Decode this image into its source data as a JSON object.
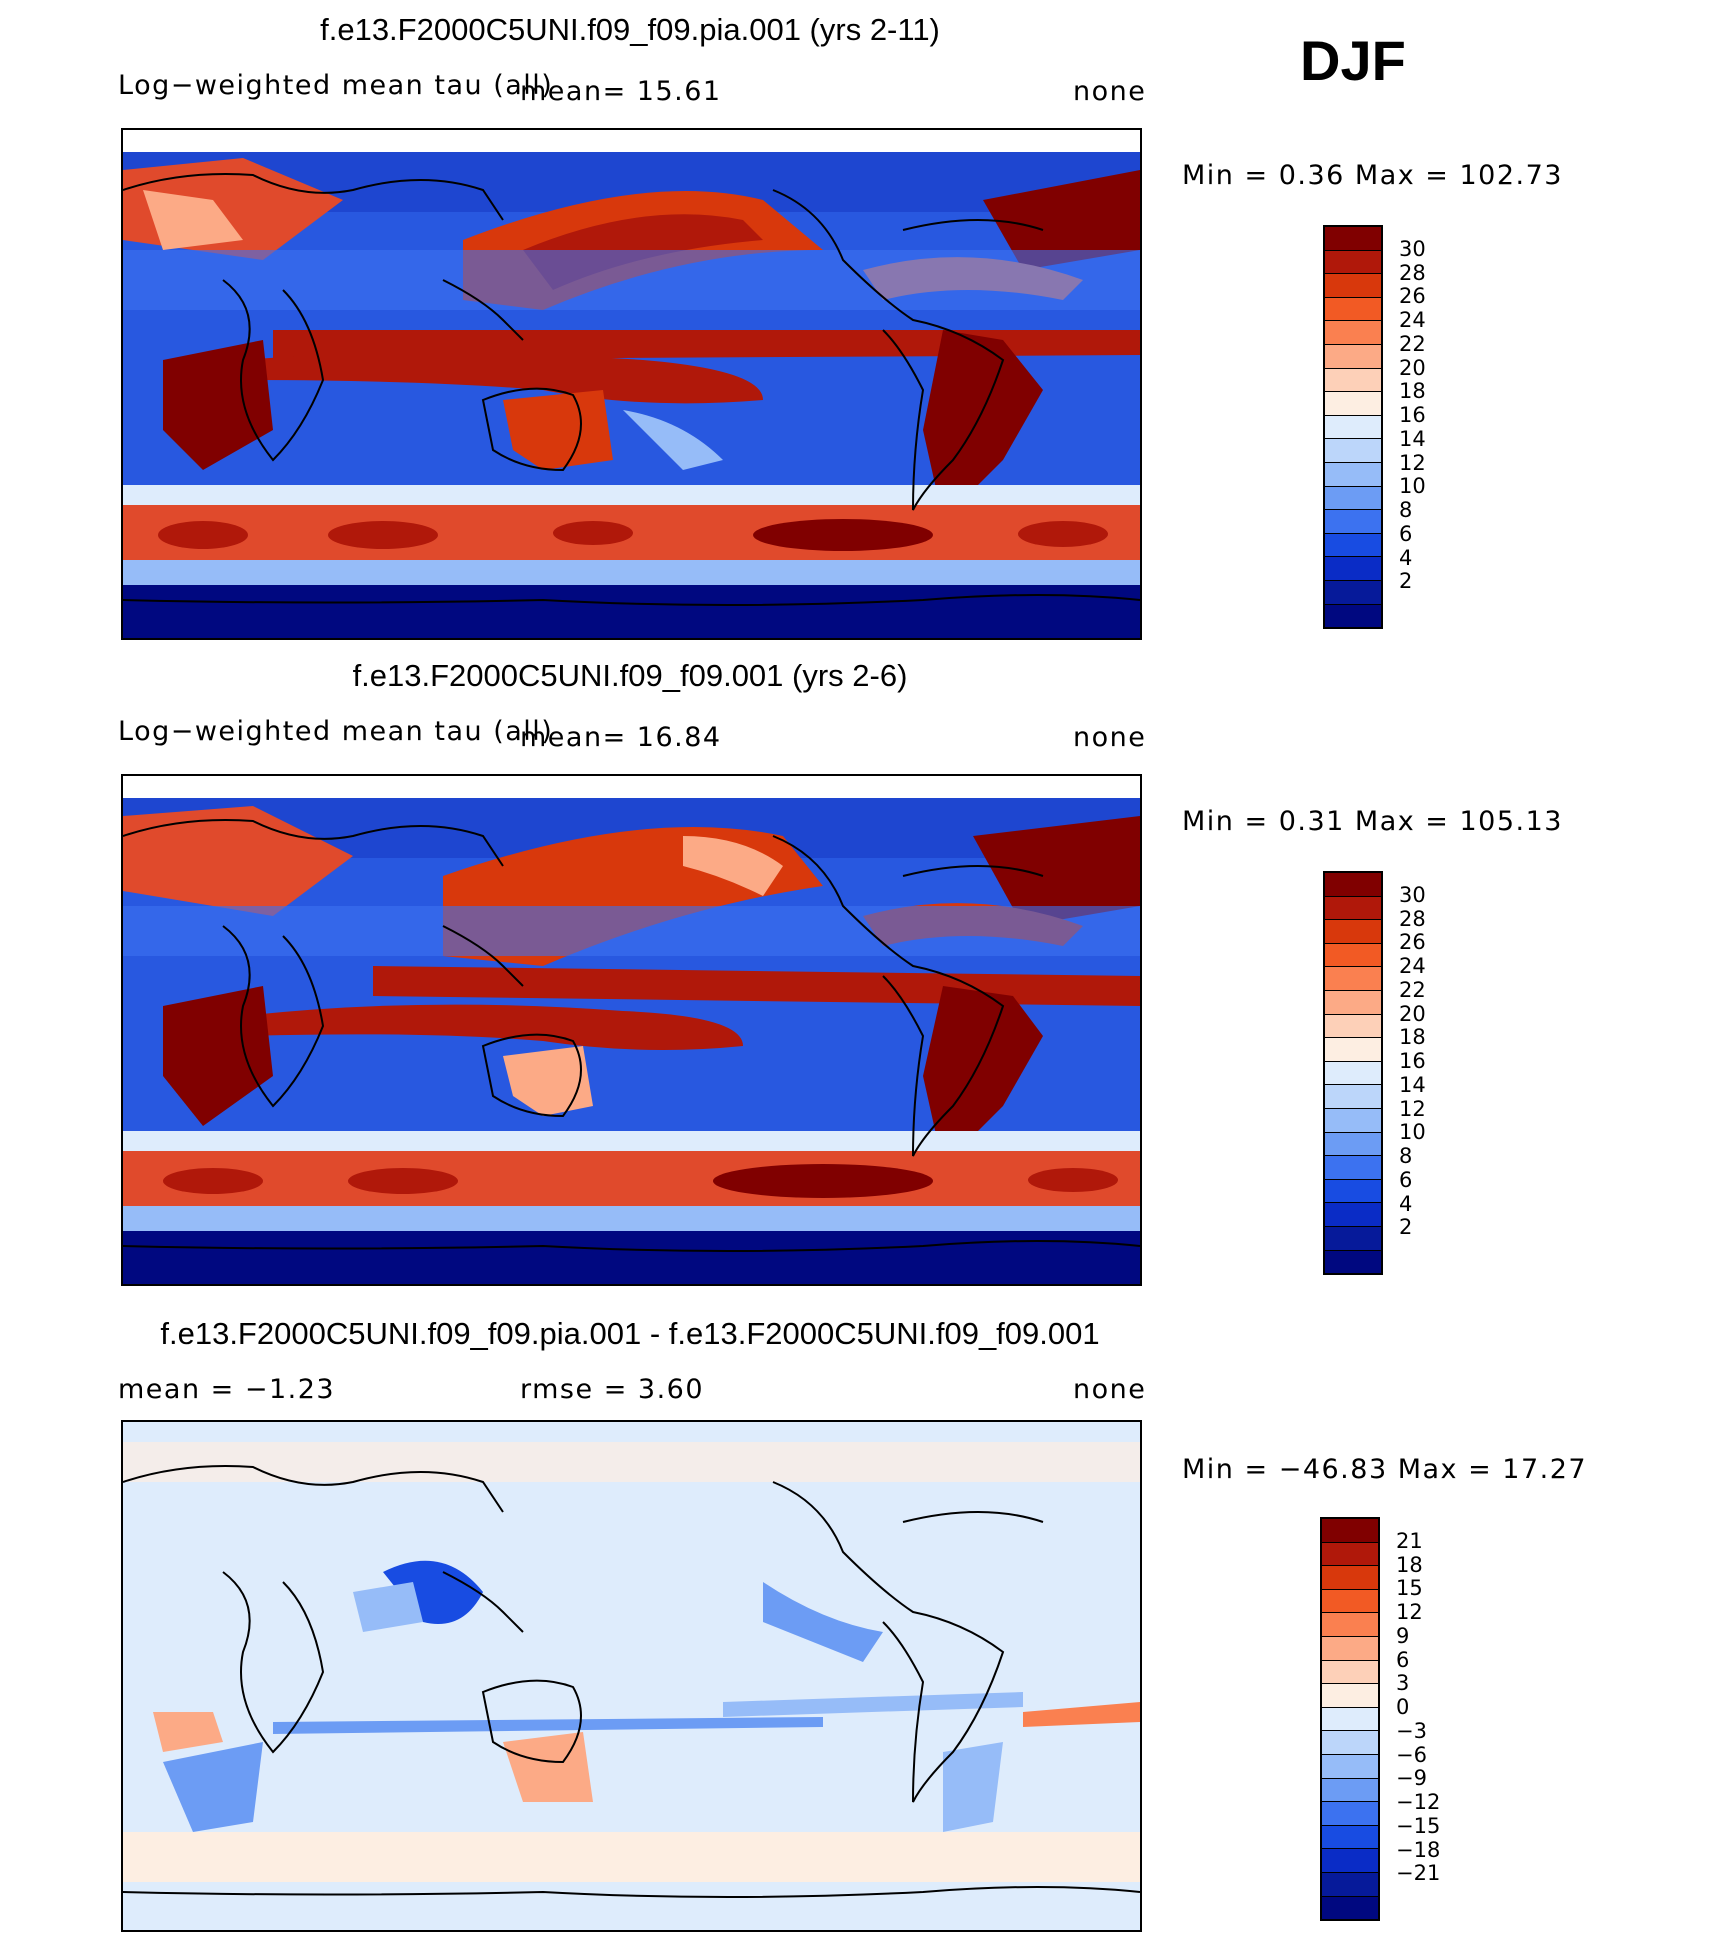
{
  "season": "DJF",
  "panels": [
    {
      "title": "f.e13.F2000C5UNI.f09_f09.pia.001 (yrs 2-11)",
      "left_label": "Log−weighted mean tau (all)",
      "mid_label": "mean=   15.61",
      "right_label": "none",
      "stats": "Min =     0.36  Max  =  102.73",
      "colorbar": {
        "colors": [
          "#800000",
          "#b0180a",
          "#d8380c",
          "#f25a24",
          "#fa8050",
          "#fcaa86",
          "#fdd0b8",
          "#fdeee2",
          "#deecfc",
          "#bcd6fa",
          "#96bcf8",
          "#6c9cf4",
          "#3c72f0",
          "#184ce2",
          "#0a2cc6",
          "#061a9a",
          "#000880"
        ],
        "ticks": [
          "30",
          "28",
          "26",
          "24",
          "22",
          "20",
          "18",
          "16",
          "14",
          "12",
          "10",
          "8",
          "6",
          "4",
          "2"
        ]
      }
    },
    {
      "title": "f.e13.F2000C5UNI.f09_f09.001 (yrs 2-6)",
      "left_label": "Log−weighted mean tau (all)",
      "mid_label": "mean=   16.84",
      "right_label": "none",
      "stats": "Min =     0.31  Max  =  105.13",
      "colorbar": {
        "colors": [
          "#800000",
          "#b0180a",
          "#d8380c",
          "#f25a24",
          "#fa8050",
          "#fcaa86",
          "#fdd0b8",
          "#fdeee2",
          "#deecfc",
          "#bcd6fa",
          "#96bcf8",
          "#6c9cf4",
          "#3c72f0",
          "#184ce2",
          "#0a2cc6",
          "#061a9a",
          "#000880"
        ],
        "ticks": [
          "30",
          "28",
          "26",
          "24",
          "22",
          "20",
          "18",
          "16",
          "14",
          "12",
          "10",
          "8",
          "6",
          "4",
          "2"
        ]
      }
    },
    {
      "title": "f.e13.F2000C5UNI.f09_f09.pia.001 - f.e13.F2000C5UNI.f09_f09.001",
      "left_label": "mean  =    −1.23",
      "mid_label": "rmse  =      3.60",
      "right_label": "none",
      "stats": "Min  =  −46.83  Max  =     17.27",
      "colorbar": {
        "colors": [
          "#800000",
          "#b0180a",
          "#d8380c",
          "#f25a24",
          "#fa8050",
          "#fcaa86",
          "#fdd0b8",
          "#fdeee2",
          "#deecfc",
          "#bcd6fa",
          "#96bcf8",
          "#6c9cf4",
          "#3c72f0",
          "#184ce2",
          "#0a2cc6",
          "#061a9a",
          "#000880"
        ],
        "ticks": [
          "21",
          "18",
          "15",
          "12",
          "9",
          "6",
          "3",
          "0",
          "−3",
          "−6",
          "−9",
          "−12",
          "−15",
          "−18",
          "−21"
        ]
      }
    }
  ]
}
